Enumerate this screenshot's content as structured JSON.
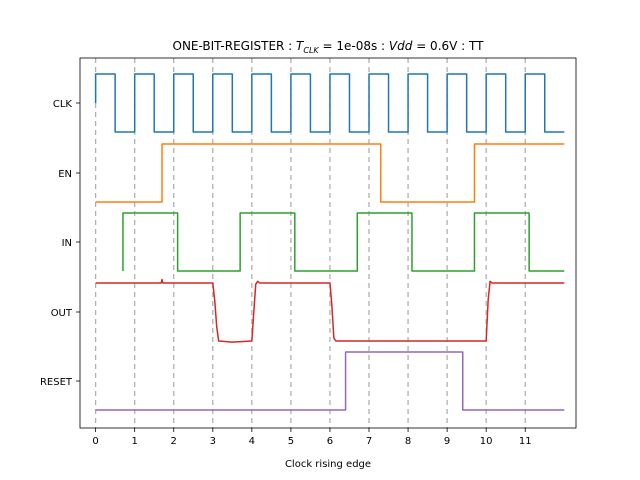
{
  "chart_data": {
    "type": "line",
    "title": {
      "prefix": "ONE-BIT-REGISTER : ",
      "tclk_symbol": "T",
      "tclk_sub": "CLK",
      "tclk_value": " = 1e-08s : ",
      "vdd_symbol": "Vdd",
      "vdd_value": " = 0.6V : TT"
    },
    "xlabel": "Clock rising edge",
    "xlim": [
      -0.4,
      12.3
    ],
    "x_ticks": [
      0,
      1,
      2,
      3,
      4,
      5,
      6,
      7,
      8,
      9,
      10,
      11
    ],
    "grid": "vertical dashed at clock rising edges",
    "signals": [
      "CLK",
      "EN",
      "IN",
      "OUT",
      "RESET"
    ],
    "series": [
      {
        "name": "CLK",
        "color": "#1f77b4",
        "points": [
          [
            0,
            0.5
          ],
          [
            0,
            1
          ],
          [
            0.5,
            1
          ],
          [
            0.5,
            0
          ],
          [
            1,
            0
          ],
          [
            1,
            1
          ],
          [
            1.5,
            1
          ],
          [
            1.5,
            0
          ],
          [
            2,
            0
          ],
          [
            2,
            1
          ],
          [
            2.5,
            1
          ],
          [
            2.5,
            0
          ],
          [
            3,
            0
          ],
          [
            3,
            1
          ],
          [
            3.5,
            1
          ],
          [
            3.5,
            0
          ],
          [
            4,
            0
          ],
          [
            4,
            1
          ],
          [
            4.5,
            1
          ],
          [
            4.5,
            0
          ],
          [
            5,
            0
          ],
          [
            5,
            1
          ],
          [
            5.5,
            1
          ],
          [
            5.5,
            0
          ],
          [
            6,
            0
          ],
          [
            6,
            1
          ],
          [
            6.5,
            1
          ],
          [
            6.5,
            0
          ],
          [
            7,
            0
          ],
          [
            7,
            1
          ],
          [
            7.5,
            1
          ],
          [
            7.5,
            0
          ],
          [
            8,
            0
          ],
          [
            8,
            1
          ],
          [
            8.5,
            1
          ],
          [
            8.5,
            0
          ],
          [
            9,
            0
          ],
          [
            9,
            1
          ],
          [
            9.5,
            1
          ],
          [
            9.5,
            0
          ],
          [
            10,
            0
          ],
          [
            10,
            1
          ],
          [
            10.5,
            1
          ],
          [
            10.5,
            0
          ],
          [
            11,
            0
          ],
          [
            11,
            1
          ],
          [
            11.5,
            1
          ],
          [
            11.5,
            0
          ],
          [
            12,
            0
          ]
        ]
      },
      {
        "name": "EN",
        "color": "#ff7f0e",
        "points": [
          [
            0,
            0
          ],
          [
            1.7,
            0
          ],
          [
            1.7,
            1
          ],
          [
            7.3,
            1
          ],
          [
            7.3,
            0
          ],
          [
            9.7,
            0
          ],
          [
            9.7,
            1
          ],
          [
            12,
            1
          ]
        ]
      },
      {
        "name": "IN",
        "color": "#2ca02c",
        "points": [
          [
            0.7,
            0
          ],
          [
            0.7,
            1
          ],
          [
            2.1,
            1
          ],
          [
            2.1,
            0
          ],
          [
            3.7,
            0
          ],
          [
            3.7,
            1
          ],
          [
            5.1,
            1
          ],
          [
            5.1,
            0
          ],
          [
            6.7,
            0
          ],
          [
            6.7,
            1
          ],
          [
            8.1,
            1
          ],
          [
            8.1,
            0
          ],
          [
            9.7,
            0
          ],
          [
            9.7,
            1
          ],
          [
            11.1,
            1
          ],
          [
            11.1,
            0
          ],
          [
            12,
            0
          ]
        ]
      },
      {
        "name": "OUT",
        "color": "#d62728",
        "points": [
          [
            0,
            1
          ],
          [
            1.68,
            1
          ],
          [
            1.7,
            1.06
          ],
          [
            1.72,
            1
          ],
          [
            3,
            1
          ],
          [
            3.05,
            0.7
          ],
          [
            3.1,
            0.25
          ],
          [
            3.15,
            0
          ],
          [
            3.5,
            -0.02
          ],
          [
            4,
            0
          ],
          [
            4.05,
            0.5
          ],
          [
            4.1,
            0.98
          ],
          [
            4.15,
            1.03
          ],
          [
            4.2,
            1
          ],
          [
            6,
            1
          ],
          [
            6.05,
            0.6
          ],
          [
            6.1,
            0.05
          ],
          [
            6.15,
            0
          ],
          [
            10,
            0
          ],
          [
            10.05,
            0.7
          ],
          [
            10.1,
            1.03
          ],
          [
            10.15,
            1
          ],
          [
            12,
            1
          ]
        ]
      },
      {
        "name": "RESET",
        "color": "#9467bd",
        "points": [
          [
            0,
            0
          ],
          [
            6.4,
            0
          ],
          [
            6.4,
            1
          ],
          [
            9.4,
            1
          ],
          [
            9.4,
            0
          ],
          [
            12,
            0
          ]
        ]
      }
    ]
  }
}
